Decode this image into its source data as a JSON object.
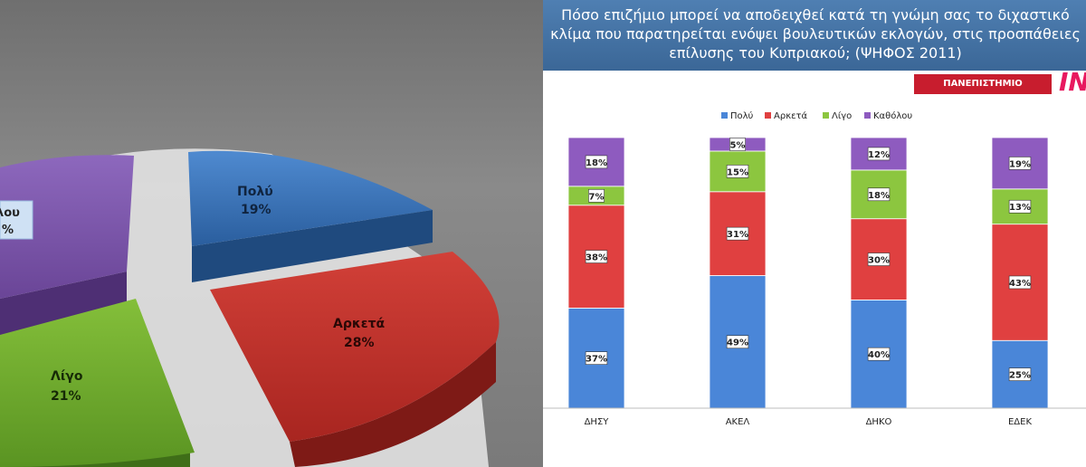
{
  "left_pie": {
    "labels": [
      {
        "key": "polu",
        "name": "Πολύ",
        "pct": "19%"
      },
      {
        "key": "arketa",
        "name": "Αρκετά",
        "pct": "28%"
      },
      {
        "key": "ligo",
        "name": "Λίγο",
        "pct": "21%"
      },
      {
        "key": "katholou",
        "name": "λου",
        "pct": "%"
      }
    ],
    "colors": {
      "polu": "#2e68b0",
      "arketa": "#c0302a",
      "ligo": "#6aa52a",
      "katholou": "#7852a8"
    }
  },
  "right_chart": {
    "title": "Πόσο επιζήμιο μπορεί να αποδειχθεί κατά τη γνώμη σας το διχαστικό κλίμα που παρατηρείται ενόψει βουλευτικών εκλογών, στις προσπάθειες επίλυσης του Κυπριακού; (ΨΗΦΟΣ 2011)",
    "logo_text": "ΠΑΝΕΠΙΣΤΗΜΙΟ ΛΕΥΚΩΣΙΑΣ",
    "logo_mark": "IN"
  },
  "chart_data": [
    {
      "type": "pie",
      "categories": [
        "Πολύ",
        "Αρκετά",
        "Λίγο",
        "Καθόλου"
      ],
      "values": [
        19,
        28,
        21,
        null
      ],
      "title": "",
      "colors": [
        "#2e68b0",
        "#c0302a",
        "#6aa52a",
        "#7852a8"
      ]
    },
    {
      "type": "bar",
      "stacked": true,
      "percent": true,
      "title": "Πόσο επιζήμιο μπορεί να αποδειχθεί κατά τη γνώμη σας το διχαστικό κλίμα που παρατηρείται ενόψει βουλευτικών εκλογών, στις προσπάθειες επίλυσης του Κυπριακού; (ΨΗΦΟΣ 2011)",
      "categories": [
        "ΔΗΣΥ",
        "ΑΚΕΛ",
        "ΔΗΚΟ",
        "ΕΔΕΚ"
      ],
      "series": [
        {
          "name": "Πολύ",
          "color": "#4a86d8",
          "values": [
            37,
            49,
            40,
            25
          ]
        },
        {
          "name": "Αρκετά",
          "color": "#e04040",
          "values": [
            38,
            31,
            30,
            43
          ]
        },
        {
          "name": "Λίγο",
          "color": "#8cc63f",
          "values": [
            7,
            15,
            18,
            13
          ]
        },
        {
          "name": "Καθόλου",
          "color": "#8e5bbf",
          "values": [
            18,
            5,
            12,
            19
          ]
        }
      ],
      "ylim": [
        0,
        100
      ],
      "legend": "top-center",
      "grid": false
    }
  ]
}
